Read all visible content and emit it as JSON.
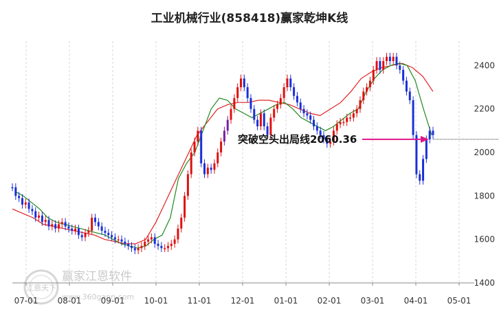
{
  "chart_data": {
    "type": "candlestick",
    "title": "工业机械行业(858418)赢家乾坤K线",
    "x_tick_labels": [
      "07-01",
      "08-01",
      "09-01",
      "10-01",
      "11-01",
      "12-01",
      "01-01",
      "02-01",
      "03-01",
      "04-01",
      "05-01"
    ],
    "y_tick_labels": [
      "1400",
      "1600",
      "1800",
      "2000",
      "2200",
      "2400"
    ],
    "ylim": [
      1400,
      2480
    ],
    "grid": "vertical dashed lines at month ticks",
    "series": [
      {
        "name": "",
        "role": "price_path",
        "values": [
          1840,
          1800,
          1790,
          1760,
          1770,
          1740,
          1730,
          1700,
          1710,
          1680,
          1690,
          1660,
          1670,
          1650,
          1670,
          1680,
          1660,
          1650,
          1640,
          1650,
          1620,
          1610,
          1630,
          1640,
          1700,
          1680,
          1660,
          1640,
          1630,
          1620,
          1610,
          1600,
          1600,
          1590,
          1580,
          1570,
          1560,
          1550,
          1560,
          1570,
          1590,
          1600,
          1610,
          1580,
          1570,
          1560,
          1560,
          1570,
          1580,
          1600,
          1650,
          1700,
          1800,
          1900,
          2000,
          2050,
          2100,
          1950,
          1900,
          1930,
          1920,
          1950,
          2000,
          2050,
          2100,
          2150,
          2200,
          2250,
          2300,
          2340,
          2300,
          2250,
          2200,
          2150,
          2120,
          2180,
          2120,
          2080,
          2160,
          2200,
          2220,
          2250,
          2300,
          2340,
          2300,
          2260,
          2230,
          2200,
          2180,
          2170,
          2150,
          2120,
          2100,
          2080,
          2060,
          2040,
          2050,
          2100,
          2130,
          2140,
          2140,
          2160,
          2160,
          2180,
          2200,
          2240,
          2280,
          2300,
          2330,
          2380,
          2420,
          2380,
          2420,
          2440,
          2420,
          2440,
          2400,
          2380,
          2330,
          2280,
          2240,
          2080,
          1900,
          1870,
          1970,
          2060,
          2100,
          2080
        ]
      },
      {
        "name": "",
        "role": "moving_average_short",
        "values": [
          1820,
          1800,
          1770,
          1740,
          1700,
          1680,
          1670,
          1660,
          1650,
          1640,
          1630,
          1620,
          1600,
          1580,
          1570,
          1560,
          1570,
          1600,
          1620,
          1700,
          1880,
          1950,
          2000,
          2100,
          2200,
          2250,
          2240,
          2200,
          2180,
          2160,
          2180,
          2200,
          2220,
          2230,
          2200,
          2160,
          2140,
          2120,
          2100,
          2120,
          2150,
          2180,
          2200,
          2280,
          2340,
          2380,
          2400,
          2410,
          2400,
          2330,
          2200,
          2080
        ]
      },
      {
        "name": "",
        "role": "moving_average_long",
        "values": [
          1740,
          1720,
          1700,
          1670,
          1660,
          1650,
          1640,
          1630,
          1620,
          1600,
          1590,
          1580,
          1580,
          1600,
          1680,
          1780,
          1880,
          1980,
          2080,
          2140,
          2200,
          2220,
          2230,
          2230,
          2240,
          2240,
          2230,
          2220,
          2200,
          2180,
          2170,
          2200,
          2230,
          2280,
          2340,
          2370,
          2390,
          2400,
          2410,
          2390,
          2350,
          2280
        ]
      }
    ],
    "annotation": {
      "text": "突破空头出局线2060.36",
      "value": 2060.36
    }
  },
  "watermark": {
    "text": "赢家江恩软件",
    "url": "www.360gann.com",
    "seal_text": "江恩天下"
  }
}
